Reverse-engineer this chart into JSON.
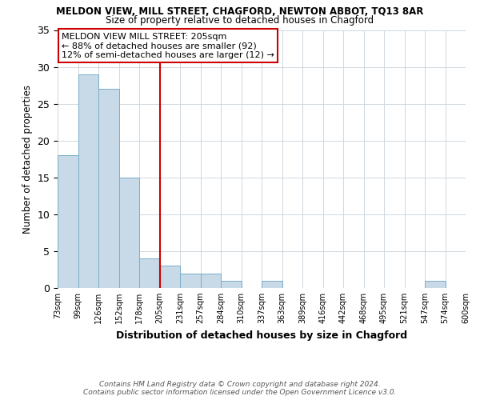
{
  "title1": "MELDON VIEW, MILL STREET, CHAGFORD, NEWTON ABBOT, TQ13 8AR",
  "title2": "Size of property relative to detached houses in Chagford",
  "xlabel": "Distribution of detached houses by size in Chagford",
  "ylabel": "Number of detached properties",
  "footnote1": "Contains HM Land Registry data © Crown copyright and database right 2024.",
  "footnote2": "Contains public sector information licensed under the Open Government Licence v3.0.",
  "bin_labels": [
    "73sqm",
    "99sqm",
    "126sqm",
    "152sqm",
    "178sqm",
    "205sqm",
    "231sqm",
    "257sqm",
    "284sqm",
    "310sqm",
    "337sqm",
    "363sqm",
    "389sqm",
    "416sqm",
    "442sqm",
    "468sqm",
    "495sqm",
    "521sqm",
    "547sqm",
    "574sqm",
    "600sqm"
  ],
  "bar_values": [
    18,
    29,
    27,
    15,
    4,
    3,
    2,
    2,
    1,
    0,
    1,
    0,
    0,
    0,
    0,
    0,
    0,
    0,
    1,
    0
  ],
  "ylim": [
    0,
    35
  ],
  "yticks": [
    0,
    5,
    10,
    15,
    20,
    25,
    30,
    35
  ],
  "bar_color": "#c8d9e8",
  "bar_edge_color": "#7aaec8",
  "vline_x_index": 5,
  "vline_color": "#cc0000",
  "annotation_box_text": "MELDON VIEW MILL STREET: 205sqm\n← 88% of detached houses are smaller (92)\n12% of semi-detached houses are larger (12) →",
  "annotation_box_color": "#cc0000",
  "background_color": "#ffffff",
  "grid_color": "#d0d8e0"
}
